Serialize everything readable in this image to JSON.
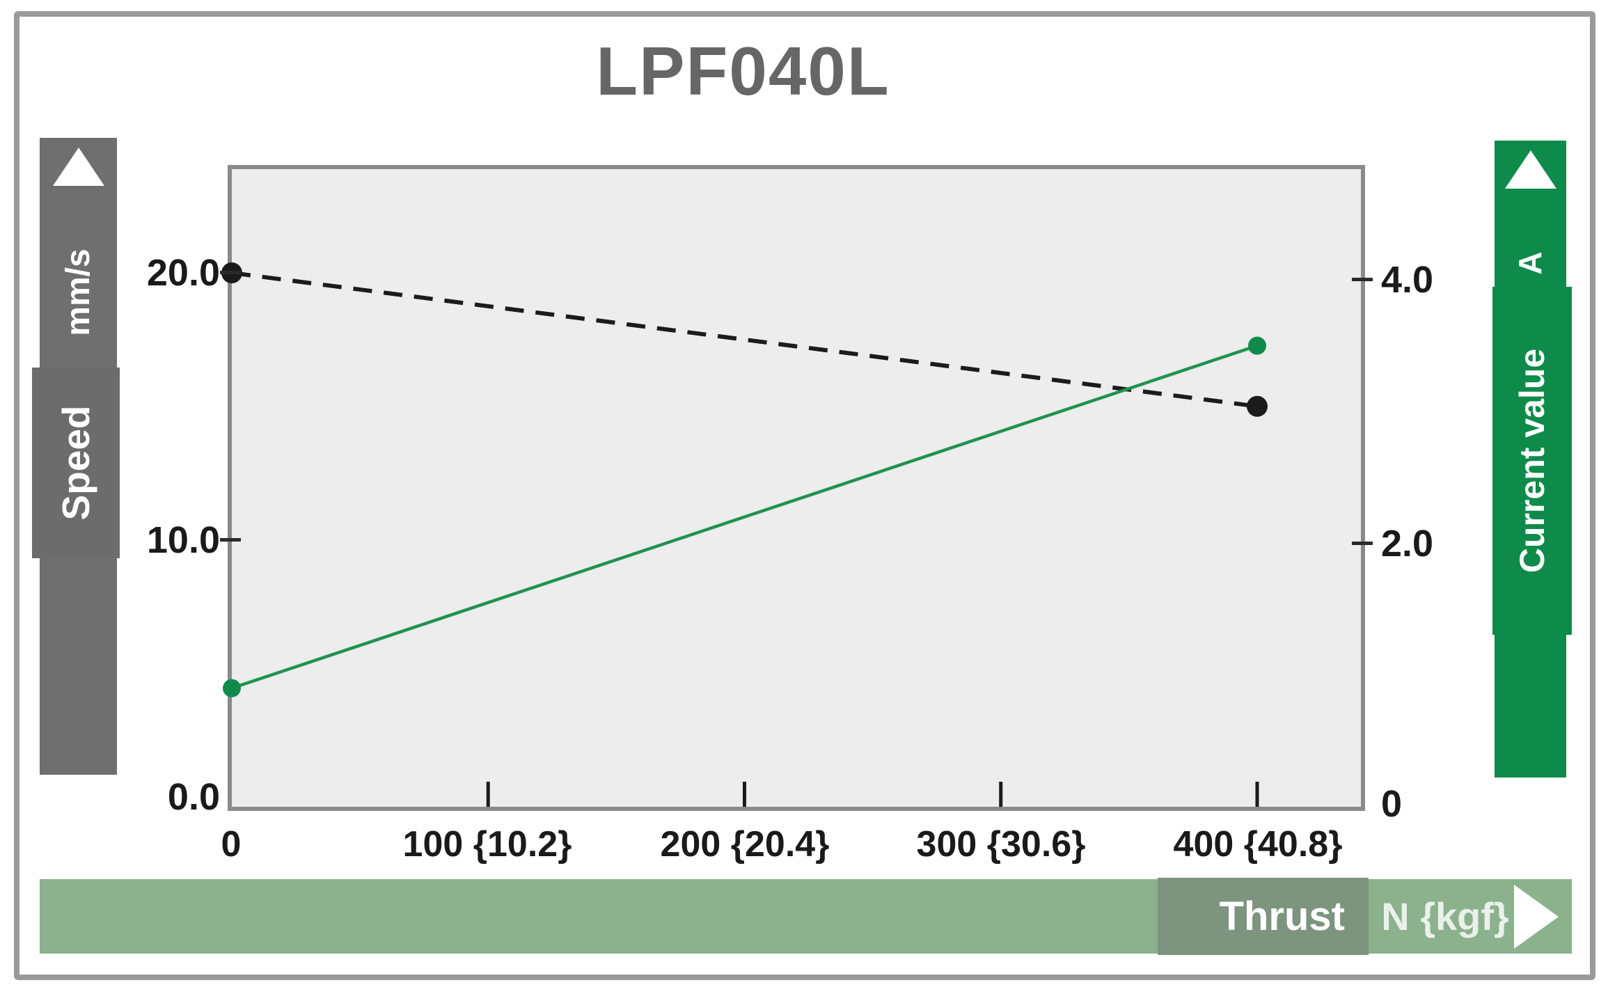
{
  "window": {
    "type": "catalog-performance-graph"
  },
  "chart_data": {
    "type": "line",
    "title": "LPF040L",
    "x_axis": {
      "label": "Thrust",
      "unit": "N {kgf}",
      "min": 0,
      "max": 400,
      "ticks": [
        {
          "value": 0,
          "label": "0"
        },
        {
          "value": 100,
          "label": "100 {10.2}"
        },
        {
          "value": 200,
          "label": "200 {20.4}"
        },
        {
          "value": 300,
          "label": "300 {30.6}"
        },
        {
          "value": 400,
          "label": "400 {40.8}"
        }
      ]
    },
    "left_axis": {
      "label": "Speed",
      "unit": "mm/s",
      "min": 0,
      "max": 20,
      "ticks": [
        "20.0",
        "10.0",
        "0.0"
      ]
    },
    "right_axis": {
      "label": "Current value",
      "unit": "A",
      "min": 0,
      "max": 4,
      "ticks": [
        "4.0",
        "2.0",
        "0"
      ]
    },
    "series": [
      {
        "name": "Speed",
        "axis": "left",
        "style": "dashed",
        "color": "#1b1b1b",
        "dot_color": "#1b1b1b",
        "points": [
          [
            0,
            20.0
          ],
          [
            400,
            15.0
          ]
        ]
      },
      {
        "name": "Current value",
        "axis": "right",
        "style": "solid",
        "color": "#1f9150",
        "dot_color": "#0e8b4a",
        "points": [
          [
            0,
            0.9
          ],
          [
            400,
            3.5
          ]
        ]
      }
    ],
    "plot": {
      "bg": "#ecedec",
      "border_color": "#8a8a8a",
      "grid": false,
      "legend": "none"
    }
  },
  "colors": {
    "speed_bar": "#6f6f6f",
    "current_bar": "#0e8b4a",
    "thrust_bar": "#8cb18d",
    "thrust_box": "#7d947e",
    "title_text": "#666666",
    "frame_border": "#9a9a9a"
  },
  "icons": {
    "speed_axis_arrow": "up-triangle",
    "current_axis_arrow": "up-triangle",
    "thrust_axis_arrow": "right-triangle"
  }
}
